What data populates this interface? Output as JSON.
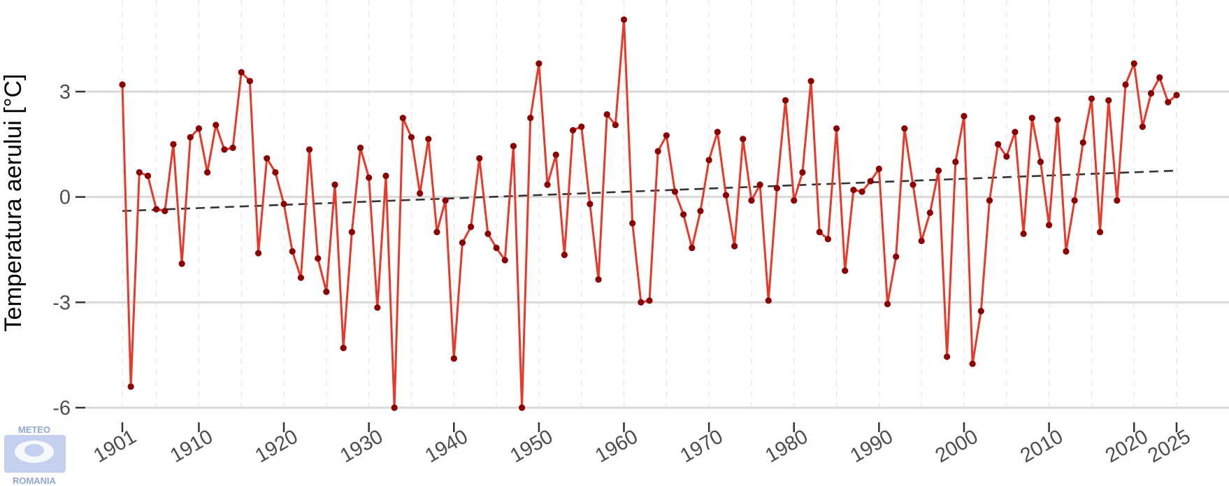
{
  "chart_data": {
    "type": "line",
    "title": "",
    "xlabel": "",
    "ylabel": "Temperatura aerului [°C]",
    "xlim": [
      1901,
      2025
    ],
    "ylim": [
      -6,
      5
    ],
    "yticks": [
      3,
      0,
      -3,
      -6
    ],
    "xticks": [
      1901,
      1910,
      1920,
      1930,
      1940,
      1950,
      1960,
      1970,
      1980,
      1990,
      2000,
      2010,
      2020,
      2025
    ],
    "grid": true,
    "legend": "none",
    "colors": {
      "line": "#e8392a",
      "points": "#8b0000",
      "trend": "#333333",
      "grid_major": "#d9d9d9",
      "grid_minor": "#e6e6e6"
    },
    "series": [
      {
        "x": [
          1901,
          1902,
          1903,
          1904,
          1905,
          1906,
          1907,
          1908,
          1909,
          1910,
          1911,
          1912,
          1913,
          1914,
          1915,
          1916,
          1917,
          1918,
          1919,
          1920,
          1921,
          1922,
          1923,
          1924,
          1925,
          1926,
          1927,
          1928,
          1929,
          1930,
          1931,
          1932,
          1933,
          1934,
          1935,
          1936,
          1937,
          1938,
          1939,
          1940,
          1941,
          1942,
          1943,
          1944,
          1945,
          1946,
          1947,
          1948,
          1949,
          1950,
          1951,
          1952,
          1953,
          1954,
          1955,
          1956,
          1957,
          1958,
          1959,
          1960,
          1961,
          1962,
          1963,
          1964,
          1965,
          1966,
          1967,
          1968,
          1969,
          1970,
          1971,
          1972,
          1973,
          1974,
          1975,
          1976,
          1977,
          1978,
          1979,
          1980,
          1981,
          1982,
          1983,
          1984,
          1985,
          1986,
          1987,
          1988,
          1989,
          1990,
          1991,
          1992,
          1993,
          1994,
          1995,
          1996,
          1997,
          1998,
          1999,
          2000,
          2001,
          2002,
          2003,
          2004,
          2005,
          2006,
          2007,
          2008,
          2009,
          2010,
          2011,
          2012,
          2013,
          2014,
          2015,
          2016,
          2017,
          2018,
          2019,
          2020,
          2021,
          2022,
          2023,
          2024,
          2025
        ],
        "values": [
          3.2,
          -5.4,
          0.7,
          0.6,
          -0.35,
          -0.4,
          1.5,
          -1.9,
          1.7,
          1.95,
          0.7,
          2.05,
          1.35,
          1.4,
          3.55,
          3.3,
          -1.6,
          1.1,
          0.7,
          -0.2,
          -1.55,
          -2.3,
          1.35,
          -1.75,
          -2.7,
          0.35,
          -4.3,
          -1.0,
          1.4,
          0.55,
          -3.15,
          0.6,
          -6.0,
          2.25,
          1.7,
          0.1,
          1.65,
          -1.0,
          -0.1,
          -4.6,
          -1.3,
          -0.85,
          1.1,
          -1.05,
          -1.45,
          -1.8,
          1.45,
          -6.0,
          2.25,
          3.8,
          0.35,
          1.2,
          -1.65,
          1.9,
          2.0,
          -0.2,
          -2.35,
          2.35,
          2.05,
          5.05,
          -0.75,
          -3.0,
          -2.95,
          1.3,
          1.75,
          0.15,
          -0.5,
          -1.45,
          -0.4,
          1.05,
          1.85,
          0.05,
          -1.4,
          1.65,
          -0.1,
          0.35,
          -2.95,
          0.25,
          2.75,
          -0.1,
          0.7,
          3.3,
          -1.0,
          -1.2,
          1.95,
          -2.1,
          0.2,
          0.15,
          0.45,
          0.8,
          -3.05,
          -1.7,
          1.95,
          0.35,
          -1.25,
          -0.45,
          0.75,
          -4.55,
          1.0,
          2.3,
          -4.75,
          -3.25,
          -0.1,
          1.5,
          1.15,
          1.85,
          -1.05,
          2.25,
          1.0,
          -0.8,
          2.2,
          -1.55,
          -0.1,
          1.55,
          2.8,
          -1.0,
          2.75,
          -0.1,
          3.2,
          3.8,
          2.0,
          2.95,
          3.4,
          2.7,
          2.9
        ]
      }
    ],
    "trend": {
      "x": [
        1901,
        2025
      ],
      "values": [
        -0.4,
        0.75
      ]
    }
  },
  "logo": {
    "top": "METEO",
    "bottom": "ROMANIA"
  }
}
